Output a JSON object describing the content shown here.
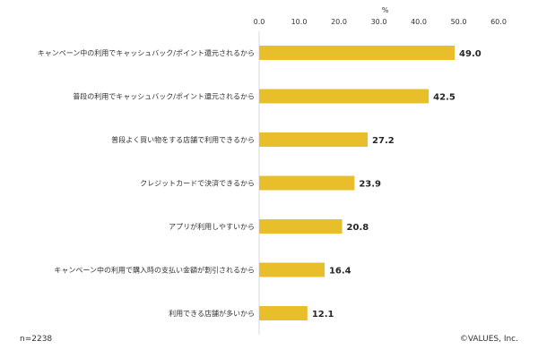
{
  "chart_data": {
    "type": "bar",
    "orientation": "horizontal",
    "unit_label": "%",
    "categories": [
      "キャンペーン中の利用でキャッシュバック/ポイント還元されるから",
      "普段の利用でキャッシュバック/ポイント還元されるから",
      "普段よく買い物をする店舗で利用できるから",
      "クレジットカードで決済できるから",
      "アプリが利用しやすいから",
      "キャンペーン中の利用で購入時の支払い金額が割引されるから",
      "利用できる店舗が多いから"
    ],
    "values": [
      49.0,
      42.5,
      27.2,
      23.9,
      20.8,
      16.4,
      12.1
    ],
    "value_labels": [
      "49.0",
      "42.5",
      "27.2",
      "23.9",
      "20.8",
      "16.4",
      "12.1"
    ],
    "xlim": [
      0,
      60
    ],
    "ticks": [
      0,
      10,
      20,
      30,
      40,
      50,
      60
    ],
    "tick_labels": [
      "0.0",
      "10.0",
      "20.0",
      "30.0",
      "40.0",
      "50.0",
      "60.0"
    ],
    "legend": "none",
    "grid": false,
    "bar_color": "#E8BF2A"
  },
  "footer": {
    "sample_note": "n=2238",
    "credit": "©VALUES, Inc."
  }
}
